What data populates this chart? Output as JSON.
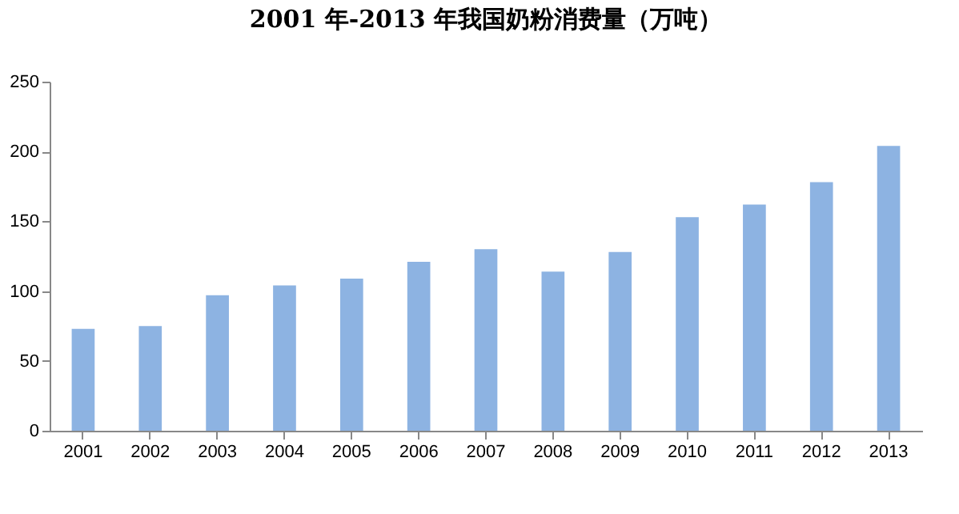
{
  "chart_data": {
    "type": "bar",
    "title": "2001 年-2013 年我国奶粉消费量（万吨）",
    "categories": [
      "2001",
      "2002",
      "2003",
      "2004",
      "2005",
      "2006",
      "2007",
      "2008",
      "2009",
      "2010",
      "2011",
      "2012",
      "2013"
    ],
    "values": [
      73,
      75,
      97,
      104,
      109,
      121,
      130,
      114,
      128,
      153,
      162,
      178,
      204
    ],
    "color": "#8db3e2",
    "ylim": [
      0,
      250
    ],
    "yticks": [
      0,
      50,
      100,
      150,
      200,
      250
    ],
    "grid": false
  }
}
